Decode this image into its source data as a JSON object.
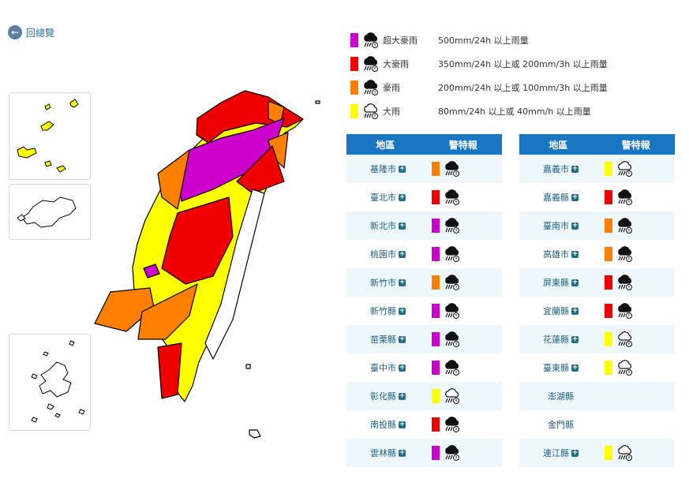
{
  "back_link": "回總覽",
  "legend": [
    {
      "name": "超大豪雨",
      "description": "500mm/24h 以上雨量",
      "color": "#cc00cc"
    },
    {
      "name": "大豪雨",
      "description": "350mm/24h 以上或 200mm/3h 以上雨量",
      "color": "#ee0000"
    },
    {
      "name": "豪雨",
      "description": "200mm/24h 以上或 100mm/3h 以上雨量",
      "color": "#ff8000"
    },
    {
      "name": "大雨",
      "description": "80mm/24h 以上或 40mm/h 以上雨量",
      "color": "#ffff00"
    }
  ],
  "tables": [
    {
      "headers": [
        "地區",
        "警特報"
      ],
      "rows": [
        {
          "area": "基隆市",
          "color": "#ff8000"
        },
        {
          "area": "臺北市",
          "color": "#ee0000"
        },
        {
          "area": "新北市",
          "color": "#cc00cc"
        },
        {
          "area": "桃園市",
          "color": "#cc00cc"
        },
        {
          "area": "新竹市",
          "color": "#ff8000"
        },
        {
          "area": "新竹縣",
          "color": "#cc00cc"
        },
        {
          "area": "苗栗縣",
          "color": "#cc00cc"
        },
        {
          "area": "臺中市",
          "color": "#cc00cc"
        },
        {
          "area": "彰化縣",
          "color": "#ffff00"
        },
        {
          "area": "南投縣",
          "color": "#ee0000"
        },
        {
          "area": "雲林縣",
          "color": "#cc00cc"
        }
      ]
    },
    {
      "headers": [
        "地區",
        "警特報"
      ],
      "rows": [
        {
          "area": "嘉義市",
          "color": "#ffff00"
        },
        {
          "area": "嘉義縣",
          "color": "#ee0000"
        },
        {
          "area": "臺南市",
          "color": "#ff8000"
        },
        {
          "area": "高雄市",
          "color": "#ff8000"
        },
        {
          "area": "屏東縣",
          "color": "#ee0000"
        },
        {
          "area": "宜蘭縣",
          "color": "#ee0000"
        },
        {
          "area": "花蓮縣",
          "color": "#ffff00"
        },
        {
          "area": "臺東縣",
          "color": "#ffff00"
        },
        {
          "area": "澎湖縣"
        },
        {
          "area": "金門縣"
        },
        {
          "area": "連江縣",
          "color": "#ffff00"
        }
      ]
    }
  ]
}
